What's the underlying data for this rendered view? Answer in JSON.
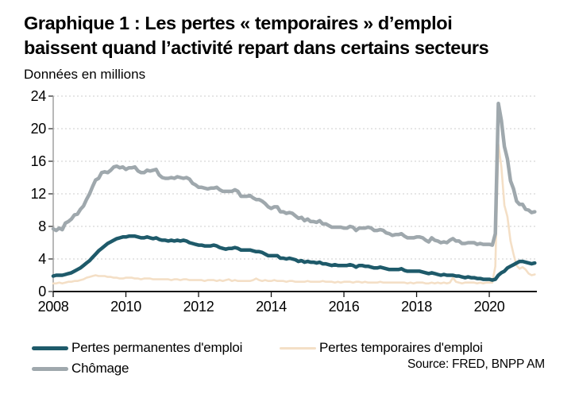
{
  "header": {
    "title_line1": "Graphique 1 : Les pertes « temporaires » d’emploi",
    "title_line2": "baissent quand l’activité repart dans certains secteurs",
    "subtitle": "Données en millions"
  },
  "footer": {
    "source": "Source: FRED, BNPP AM"
  },
  "chart_data": {
    "type": "line",
    "title": "Graphique 1 : Les pertes « temporaires » d’emploi baissent quand l’activité repart dans certains secteurs",
    "subtitle": "Données en millions",
    "xlabel": "",
    "ylabel": "",
    "x_axis": {
      "ticks": [
        2008,
        2010,
        2012,
        2014,
        2016,
        2018,
        2020
      ],
      "range": [
        2008,
        2021.31
      ]
    },
    "y_axis": {
      "ticks": [
        0,
        4,
        8,
        12,
        16,
        20,
        24
      ],
      "range": [
        0,
        24
      ]
    },
    "grid": "horizontal-dashed",
    "legend_position": "bottom-left",
    "axis_colors": {
      "x_axis": "#111111",
      "y_axis": "#999999",
      "gridline": "#cccccc"
    },
    "series": [
      {
        "name": "Pertes permanentes d'emploi",
        "color": "#1e5a6a",
        "line_width": 4.5,
        "z": 3,
        "start_year": 2008,
        "monthly_values": [
          1.9,
          2.0,
          2.0,
          2.0,
          2.1,
          2.2,
          2.3,
          2.5,
          2.7,
          2.9,
          3.2,
          3.5,
          3.8,
          4.2,
          4.6,
          5.0,
          5.3,
          5.6,
          5.9,
          6.1,
          6.3,
          6.5,
          6.6,
          6.7,
          6.7,
          6.8,
          6.8,
          6.8,
          6.7,
          6.6,
          6.6,
          6.7,
          6.6,
          6.5,
          6.6,
          6.4,
          6.3,
          6.3,
          6.2,
          6.3,
          6.2,
          6.3,
          6.2,
          6.3,
          6.2,
          6.0,
          5.9,
          5.8,
          5.7,
          5.7,
          5.6,
          5.6,
          5.6,
          5.7,
          5.6,
          5.4,
          5.3,
          5.2,
          5.3,
          5.3,
          5.4,
          5.3,
          5.1,
          5.1,
          5.1,
          5.1,
          5.0,
          4.9,
          4.9,
          4.8,
          4.6,
          4.4,
          4.4,
          4.4,
          4.4,
          4.1,
          4.1,
          4.0,
          4.1,
          4.0,
          3.9,
          3.7,
          3.8,
          3.6,
          3.7,
          3.6,
          3.6,
          3.5,
          3.6,
          3.4,
          3.4,
          3.3,
          3.2,
          3.3,
          3.2,
          3.2,
          3.2,
          3.2,
          3.3,
          3.2,
          3.0,
          3.2,
          3.2,
          3.1,
          3.1,
          3.0,
          2.9,
          2.9,
          3.0,
          2.9,
          2.8,
          2.7,
          2.7,
          2.7,
          2.7,
          2.8,
          2.6,
          2.5,
          2.5,
          2.5,
          2.5,
          2.5,
          2.4,
          2.3,
          2.2,
          2.3,
          2.2,
          2.1,
          2.0,
          2.1,
          2.0,
          2.0,
          2.0,
          1.9,
          1.9,
          1.8,
          1.7,
          1.8,
          1.7,
          1.7,
          1.6,
          1.6,
          1.5,
          1.5,
          1.5,
          1.4,
          1.5,
          2.0,
          2.3,
          2.5,
          2.9,
          3.1,
          3.3,
          3.5,
          3.7,
          3.7,
          3.6,
          3.5,
          3.4,
          3.5
        ]
      },
      {
        "name": "Pertes temporaires d'emploi",
        "color": "#f4dfc6",
        "line_width": 2.6,
        "z": 1,
        "start_year": 2008,
        "monthly_values": [
          1.0,
          1.0,
          1.1,
          1.0,
          1.1,
          1.2,
          1.2,
          1.3,
          1.3,
          1.4,
          1.5,
          1.7,
          1.8,
          1.9,
          2.0,
          1.9,
          1.9,
          1.9,
          1.8,
          1.8,
          1.7,
          1.7,
          1.6,
          1.6,
          1.7,
          1.7,
          1.7,
          1.6,
          1.6,
          1.5,
          1.6,
          1.6,
          1.6,
          1.5,
          1.5,
          1.5,
          1.5,
          1.5,
          1.5,
          1.4,
          1.5,
          1.5,
          1.4,
          1.5,
          1.5,
          1.4,
          1.4,
          1.4,
          1.4,
          1.4,
          1.3,
          1.4,
          1.4,
          1.4,
          1.3,
          1.4,
          1.3,
          1.4,
          1.5,
          1.3,
          1.4,
          1.3,
          1.3,
          1.3,
          1.3,
          1.3,
          1.4,
          1.6,
          1.4,
          1.3,
          1.4,
          1.3,
          1.3,
          1.4,
          1.3,
          1.3,
          1.3,
          1.2,
          1.3,
          1.3,
          1.2,
          1.2,
          1.2,
          1.2,
          1.3,
          1.2,
          1.2,
          1.2,
          1.2,
          1.3,
          1.2,
          1.2,
          1.2,
          1.1,
          1.2,
          1.1,
          1.2,
          1.2,
          1.2,
          1.1,
          1.2,
          1.2,
          1.1,
          1.2,
          1.1,
          1.1,
          1.1,
          1.1,
          1.2,
          1.1,
          1.1,
          1.1,
          1.1,
          1.1,
          1.1,
          1.1,
          1.1,
          1.0,
          1.1,
          1.0,
          1.1,
          1.1,
          1.1,
          1.0,
          1.0,
          1.1,
          1.0,
          1.1,
          1.0,
          1.1,
          1.0,
          1.1,
          1.7,
          1.2,
          1.1,
          1.0,
          1.1,
          1.1,
          1.1,
          1.1,
          1.0,
          1.1,
          1.0,
          1.1,
          1.1,
          1.1,
          3.1,
          18.1,
          15.3,
          10.6,
          9.2,
          6.2,
          4.6,
          3.2,
          2.8,
          3.0,
          2.7,
          2.2,
          2.0,
          2.1
        ]
      },
      {
        "name": "Chômage",
        "color": "#9fa8ad",
        "line_width": 4.5,
        "z": 2,
        "start_year": 2008,
        "monthly_values": [
          7.7,
          7.5,
          7.8,
          7.6,
          8.4,
          8.6,
          8.9,
          9.4,
          9.5,
          10.1,
          10.5,
          11.3,
          12.0,
          12.9,
          13.7,
          13.9,
          14.6,
          14.7,
          14.6,
          14.9,
          15.3,
          15.4,
          15.2,
          15.3,
          15.0,
          15.2,
          15.2,
          15.3,
          14.8,
          14.6,
          14.6,
          14.9,
          14.8,
          14.9,
          15.0,
          14.3,
          14.0,
          13.9,
          13.9,
          14.0,
          13.9,
          14.1,
          14.0,
          13.9,
          14.0,
          13.8,
          13.3,
          13.1,
          12.8,
          12.8,
          12.7,
          12.6,
          12.7,
          12.7,
          12.8,
          12.5,
          12.3,
          12.3,
          12.3,
          12.3,
          12.5,
          12.3,
          11.7,
          11.7,
          11.7,
          11.8,
          11.5,
          11.3,
          11.3,
          11.1,
          10.8,
          10.4,
          10.2,
          10.4,
          10.4,
          9.8,
          9.8,
          9.6,
          9.7,
          9.6,
          9.3,
          9.0,
          9.1,
          8.7,
          8.9,
          8.6,
          8.6,
          8.5,
          8.7,
          8.3,
          8.3,
          8.1,
          7.9,
          7.9,
          7.9,
          7.9,
          7.8,
          7.8,
          8.0,
          7.9,
          7.5,
          7.8,
          7.8,
          7.8,
          7.9,
          7.8,
          7.5,
          7.5,
          7.6,
          7.5,
          7.2,
          7.1,
          6.9,
          7.0,
          7.0,
          7.1,
          6.8,
          6.6,
          6.6,
          6.6,
          6.7,
          6.7,
          6.6,
          6.3,
          6.1,
          6.6,
          6.3,
          6.2,
          6.0,
          6.1,
          6.0,
          6.3,
          6.5,
          6.2,
          6.2,
          5.9,
          5.9,
          6.0,
          6.0,
          6.0,
          5.8,
          5.9,
          5.8,
          5.8,
          5.8,
          5.7,
          7.1,
          23.1,
          21.0,
          17.8,
          16.3,
          13.6,
          12.6,
          11.1,
          10.7,
          10.7,
          10.1,
          10.0,
          9.7,
          9.8
        ]
      }
    ]
  }
}
